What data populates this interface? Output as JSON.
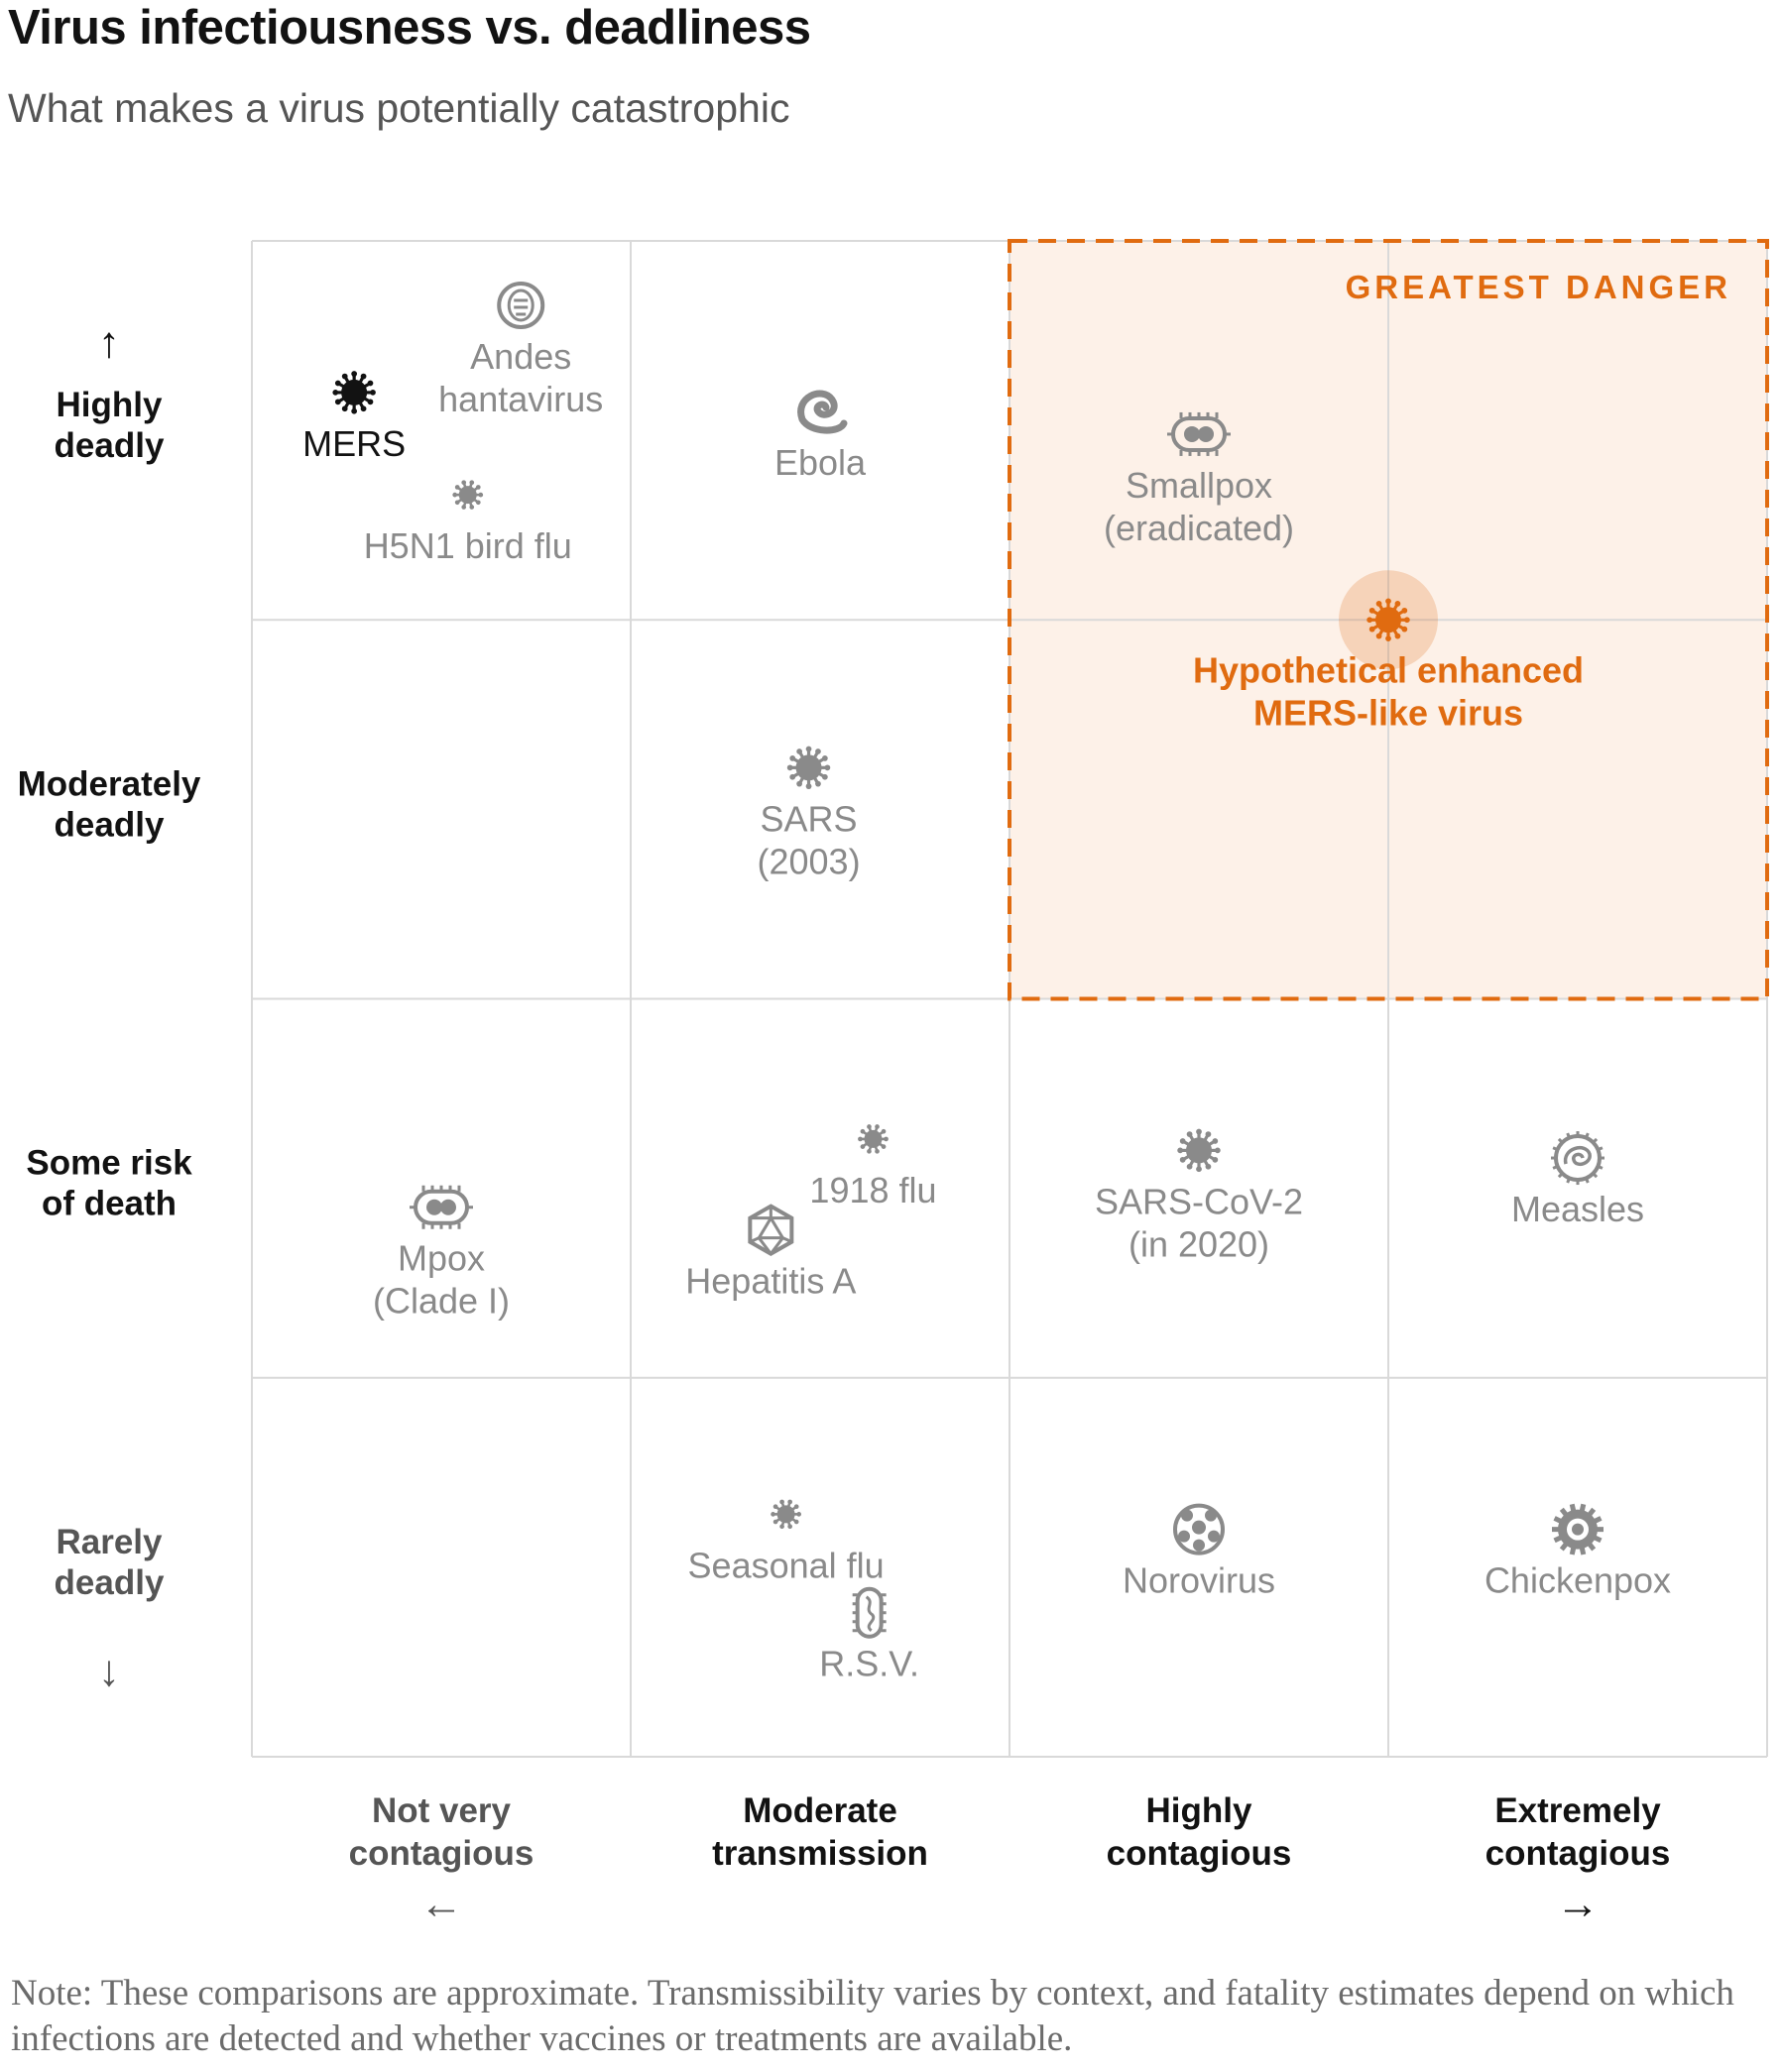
{
  "title": "Virus infectiousness vs. deadliness",
  "subtitle": "What makes a virus potentially catastrophic",
  "note": "Note: These comparisons are approximate. Transmissibility varies by context, and fatality estimates depend on which infections are detected and whether vaccines or treatments are available.",
  "colors": {
    "accent": "#e06b10",
    "highlight_fill": "#fdf1e8",
    "grid": "#d9d9d9",
    "muted_text": "#8a8a8a",
    "dark_text": "#121212"
  },
  "chart_data": {
    "type": "scatter",
    "title": "Virus infectiousness vs. deadliness",
    "subtitle": "What makes a virus potentially catastrophic",
    "x_categories": [
      "Not very contagious",
      "Moderate transmission",
      "Highly contagious",
      "Extremely contagious"
    ],
    "y_categories": [
      "Rarely deadly",
      "Some risk of death",
      "Moderately deadly",
      "Highly deadly"
    ],
    "x_axis_labels": [
      [
        "Not very",
        "contagious"
      ],
      [
        "Moderate",
        "transmission"
      ],
      [
        "Highly",
        "contagious"
      ],
      [
        "Extremely",
        "contagious"
      ]
    ],
    "y_axis_labels": [
      [
        "Highly",
        "deadly"
      ],
      [
        "Moderately",
        "deadly"
      ],
      [
        "Some risk",
        "of death"
      ],
      [
        "Rarely",
        "deadly"
      ]
    ],
    "arrows": {
      "up": "↑",
      "down": "↓",
      "left": "←",
      "right": "→"
    },
    "highlight_region": {
      "label": "GREATEST DANGER",
      "x_range": [
        2.0,
        4.0
      ],
      "y_range": [
        2.0,
        4.0
      ]
    },
    "grid": true,
    "points": [
      {
        "label": [
          "MERS"
        ],
        "x": 0.27,
        "y": 3.6,
        "icon": "corona-virus-icon",
        "style": "dark"
      },
      {
        "label": [
          "Andes",
          "hantavirus"
        ],
        "x": 0.71,
        "y": 3.83,
        "icon": "hantavirus-icon",
        "style": "muted"
      },
      {
        "label": [
          "H5N1 bird flu"
        ],
        "x": 0.57,
        "y": 3.33,
        "icon": "flu-virus-icon",
        "style": "muted"
      },
      {
        "label": [
          "Ebola"
        ],
        "x": 1.5,
        "y": 3.55,
        "icon": "ebola-virus-icon",
        "style": "muted"
      },
      {
        "label": [
          "Smallpox",
          "(eradicated)"
        ],
        "x": 2.5,
        "y": 3.49,
        "icon": "poxvirus-icon",
        "style": "muted"
      },
      {
        "label": [
          "Hypothetical enhanced",
          "MERS-like virus"
        ],
        "x": 3.0,
        "y": 3.0,
        "icon": "corona-virus-icon",
        "style": "accent"
      },
      {
        "label": [
          "SARS",
          "(2003)"
        ],
        "x": 1.47,
        "y": 2.61,
        "icon": "corona-virus-icon",
        "style": "muted"
      },
      {
        "label": [
          "1918 flu"
        ],
        "x": 1.64,
        "y": 1.63,
        "icon": "flu-virus-icon",
        "style": "muted"
      },
      {
        "label": [
          "Hepatitis A"
        ],
        "x": 1.37,
        "y": 1.39,
        "icon": "icosahedral-virus-icon",
        "style": "muted"
      },
      {
        "label": [
          "Mpox",
          "(Clade I)"
        ],
        "x": 0.5,
        "y": 1.45,
        "icon": "poxvirus-icon",
        "style": "muted"
      },
      {
        "label": [
          "SARS-CoV-2",
          "(in 2020)"
        ],
        "x": 2.5,
        "y": 1.6,
        "icon": "corona-virus-icon",
        "style": "muted"
      },
      {
        "label": [
          "Measles"
        ],
        "x": 3.5,
        "y": 1.58,
        "icon": "measles-virus-icon",
        "style": "muted"
      },
      {
        "label": [
          "Seasonal flu"
        ],
        "x": 1.41,
        "y": 0.64,
        "icon": "flu-virus-icon",
        "style": "muted"
      },
      {
        "label": [
          "R.S.V."
        ],
        "x": 1.63,
        "y": 0.38,
        "icon": "rsv-virus-icon",
        "style": "muted"
      },
      {
        "label": [
          "Norovirus"
        ],
        "x": 2.5,
        "y": 0.6,
        "icon": "norovirus-icon",
        "style": "muted"
      },
      {
        "label": [
          "Chickenpox"
        ],
        "x": 3.5,
        "y": 0.6,
        "icon": "herpesvirus-icon",
        "style": "muted"
      }
    ]
  }
}
